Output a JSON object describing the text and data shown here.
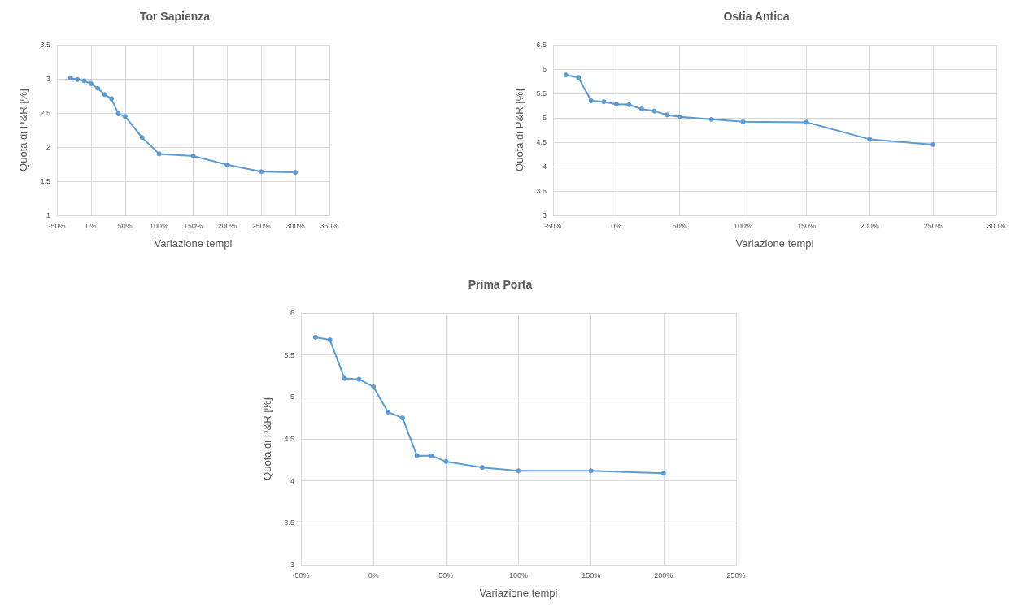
{
  "chart_data": [
    {
      "type": "line",
      "title": "Tor Sapienza",
      "xlabel": "Variazione tempi",
      "ylabel": "Quota di P&R [%]",
      "x": [
        -30,
        -20,
        -10,
        0,
        10,
        20,
        30,
        40,
        50,
        75,
        100,
        150,
        200,
        250,
        300
      ],
      "series": [
        {
          "color": "#5b9bd5",
          "values": [
            3.01,
            2.99,
            2.97,
            2.93,
            2.86,
            2.77,
            2.71,
            2.49,
            2.45,
            2.14,
            1.9,
            1.87,
            1.74,
            1.64,
            1.63
          ]
        }
      ],
      "xlim": [
        -50,
        350
      ],
      "xticks": [
        {
          "value": -50,
          "label": "-50%"
        },
        {
          "value": 0,
          "label": "0%"
        },
        {
          "value": 50,
          "label": "50%"
        },
        {
          "value": 100,
          "label": "100%"
        },
        {
          "value": 150,
          "label": "150%"
        },
        {
          "value": 200,
          "label": "200%"
        },
        {
          "value": 250,
          "label": "250%"
        },
        {
          "value": 300,
          "label": "300%"
        },
        {
          "value": 350,
          "label": "350%"
        }
      ],
      "ylim": [
        1,
        3.5
      ],
      "yticks": [
        1,
        1.5,
        2,
        2.5,
        3,
        3.5
      ],
      "grid": true,
      "marker": "circle",
      "line_style": "solid"
    },
    {
      "type": "line",
      "title": "Ostia Antica",
      "xlabel": "Variazione tempi",
      "ylabel": "Quota di P&R [%]",
      "x": [
        -40,
        -30,
        -20,
        -10,
        0,
        10,
        20,
        30,
        40,
        50,
        75,
        100,
        150,
        200,
        250
      ],
      "series": [
        {
          "color": "#5b9bd5",
          "values": [
            5.88,
            5.83,
            5.35,
            5.33,
            5.28,
            5.27,
            5.18,
            5.14,
            5.06,
            5.02,
            4.97,
            4.92,
            4.91,
            4.56,
            4.45
          ]
        }
      ],
      "xlim": [
        -50,
        300
      ],
      "xticks": [
        {
          "value": -50,
          "label": "-50%"
        },
        {
          "value": 0,
          "label": "0%"
        },
        {
          "value": 50,
          "label": "50%"
        },
        {
          "value": 100,
          "label": "100%"
        },
        {
          "value": 150,
          "label": "150%"
        },
        {
          "value": 200,
          "label": "200%"
        },
        {
          "value": 250,
          "label": "250%"
        },
        {
          "value": 300,
          "label": "300%"
        }
      ],
      "ylim": [
        3,
        6.5
      ],
      "yticks": [
        3,
        3.5,
        4,
        4.5,
        5,
        5.5,
        6,
        6.5
      ],
      "grid": true,
      "marker": "circle",
      "line_style": "solid"
    },
    {
      "type": "line",
      "title": "Prima Porta",
      "xlabel": "Variazione tempi",
      "ylabel": "Quota di P&R [%]",
      "x": [
        -40,
        -30,
        -20,
        -10,
        0,
        10,
        20,
        30,
        40,
        50,
        75,
        100,
        150,
        200
      ],
      "series": [
        {
          "color": "#5b9bd5",
          "values": [
            5.71,
            5.68,
            5.22,
            5.21,
            5.12,
            4.82,
            4.75,
            4.3,
            4.3,
            4.23,
            4.16,
            4.12,
            4.12,
            4.09
          ]
        }
      ],
      "xlim": [
        -50,
        250
      ],
      "xticks": [
        {
          "value": -50,
          "label": "-50%"
        },
        {
          "value": 0,
          "label": "0%"
        },
        {
          "value": 50,
          "label": "50%"
        },
        {
          "value": 100,
          "label": "100%"
        },
        {
          "value": 150,
          "label": "150%"
        },
        {
          "value": 200,
          "label": "200%"
        },
        {
          "value": 250,
          "label": "250%"
        }
      ],
      "ylim": [
        3,
        6
      ],
      "yticks": [
        3,
        3.5,
        4,
        4.5,
        5,
        5.5,
        6
      ],
      "grid": true,
      "marker": "circle",
      "line_style": "solid"
    }
  ]
}
